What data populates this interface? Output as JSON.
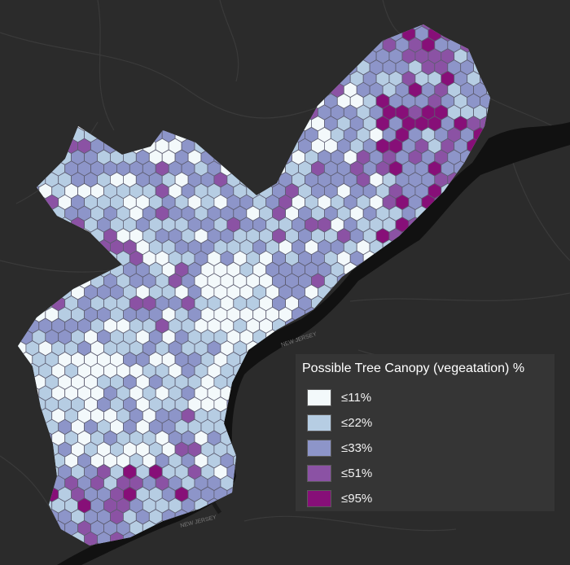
{
  "legend": {
    "title": "Possible Tree Canopy (vegeatation) %",
    "items": [
      {
        "label": "≤11%",
        "color": "#f3f9fb"
      },
      {
        "label": "≤22%",
        "color": "#b6cde3"
      },
      {
        "label": "≤33%",
        "color": "#8d95c9"
      },
      {
        "label": "≤51%",
        "color": "#8b52a4"
      },
      {
        "label": "≤95%",
        "color": "#870f78"
      }
    ]
  },
  "map_labels": {
    "river_label_north": "NEW JERSEY",
    "river_label_south": "NEW JERSEY"
  },
  "colors": {
    "basemap": "#2b2b2b",
    "water": "#111111",
    "roads": "#3d3d3d",
    "hex_stroke": "#5c5c70"
  }
}
